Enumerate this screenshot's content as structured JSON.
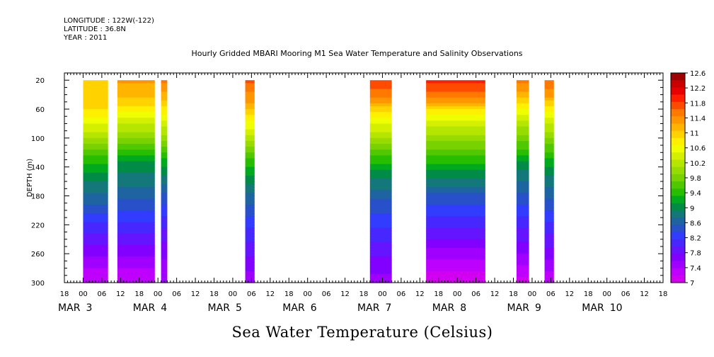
{
  "header": {
    "longitude": "LONGITUDE : 122W(-122)",
    "latitude": "LATITUDE : 36.8N",
    "year": "YEAR : 2011"
  },
  "chart_data": {
    "type": "heatmap",
    "title": "Hourly Gridded MBARI Mooring M1 Sea Water Temperature and Salinity Observations",
    "bottom_title": "Sea Water Temperature (Celsius)",
    "ylabel": "DEPTH (m)",
    "ylim": [
      300,
      10
    ],
    "y_ticks": [
      20,
      60,
      100,
      140,
      180,
      220,
      260,
      300
    ],
    "y_tick_labels": [
      "20",
      "60",
      "100",
      "140",
      "180",
      "220",
      "260",
      "300"
    ],
    "x_range_hours": "2011-03-02 18:00 to 2011-03-10 18:00",
    "x_hour_labels": [
      "18",
      "00",
      "06",
      "12",
      "18",
      "00",
      "06",
      "12",
      "18",
      "00",
      "06",
      "12",
      "18",
      "00",
      "06",
      "12",
      "18",
      "00",
      "06",
      "12",
      "18",
      "00",
      "06",
      "12",
      "18",
      "00",
      "06",
      "12",
      "18",
      "00",
      "06",
      "12",
      "18"
    ],
    "x_date_labels": [
      {
        "month": "MAR",
        "day": "3",
        "anchor_hour": "2011-03-03 00:00"
      },
      {
        "month": "MAR",
        "day": "4",
        "anchor_hour": "2011-03-04 00:00"
      },
      {
        "month": "MAR",
        "day": "5",
        "anchor_hour": "2011-03-05 00:00"
      },
      {
        "month": "MAR",
        "day": "6",
        "anchor_hour": "2011-03-06 00:00"
      },
      {
        "month": "MAR",
        "day": "7",
        "anchor_hour": "2011-03-07 00:00"
      },
      {
        "month": "MAR",
        "day": "8",
        "anchor_hour": "2011-03-08 00:00"
      },
      {
        "month": "MAR",
        "day": "9",
        "anchor_hour": "2011-03-09 00:00"
      },
      {
        "month": "MAR",
        "day": "10",
        "anchor_hour": "2011-03-10 00:00"
      }
    ],
    "colorbar": {
      "min": 7.0,
      "max": 12.6,
      "step": 0.2,
      "labels": [
        "12.6",
        "12.2",
        "11.8",
        "11.4",
        "11",
        "10.6",
        "10.2",
        "9.8",
        "9.4",
        "9",
        "8.6",
        "8.2",
        "7.8",
        "7.4",
        "7"
      ],
      "colors": [
        "#9e0000",
        "#c80000",
        "#e60000",
        "#ff1e00",
        "#ff4b00",
        "#ff7800",
        "#ff9600",
        "#ffb400",
        "#ffd200",
        "#fff000",
        "#f0ff00",
        "#d2f000",
        "#b4e600",
        "#96dc00",
        "#78d200",
        "#50c800",
        "#28be00",
        "#00aa1e",
        "#008c46",
        "#14787a",
        "#1e64a0",
        "#2850c8",
        "#323cff",
        "#4628ff",
        "#6414ff",
        "#8200ff",
        "#a000ff",
        "#be00ff",
        "#d200f0"
      ]
    },
    "data_segments": [
      {
        "start": "2011-03-03 00:00",
        "end": "2011-03-03 08:00",
        "profile": [
          [
            20,
            11.0
          ],
          [
            40,
            11.0
          ],
          [
            60,
            10.9
          ],
          [
            80,
            10.5
          ],
          [
            100,
            10.1
          ],
          [
            120,
            9.6
          ],
          [
            140,
            9.2
          ],
          [
            180,
            8.7
          ],
          [
            220,
            8.1
          ],
          [
            260,
            7.6
          ],
          [
            300,
            7.2
          ]
        ]
      },
      {
        "start": "2011-03-03 11:00",
        "end": "2011-03-03 23:00",
        "profile": [
          [
            20,
            11.3
          ],
          [
            40,
            11.1
          ],
          [
            60,
            10.8
          ],
          [
            80,
            10.3
          ],
          [
            100,
            9.9
          ],
          [
            120,
            9.4
          ],
          [
            140,
            9.0
          ],
          [
            180,
            8.6
          ],
          [
            220,
            8.1
          ],
          [
            260,
            7.6
          ],
          [
            300,
            7.2
          ]
        ]
      },
      {
        "start": "2011-03-04 01:00",
        "end": "2011-03-04 03:00",
        "profile": [
          [
            20,
            11.5
          ],
          [
            40,
            11.2
          ],
          [
            60,
            10.8
          ],
          [
            80,
            10.4
          ],
          [
            100,
            10.0
          ],
          [
            120,
            9.5
          ],
          [
            140,
            9.1
          ],
          [
            180,
            8.5
          ],
          [
            220,
            8.0
          ],
          [
            260,
            7.6
          ],
          [
            300,
            7.5
          ]
        ]
      },
      {
        "start": "2011-03-05 04:00",
        "end": "2011-03-05 07:00",
        "profile": [
          [
            20,
            11.7
          ],
          [
            40,
            11.4
          ],
          [
            60,
            11.1
          ],
          [
            80,
            10.6
          ],
          [
            100,
            10.2
          ],
          [
            120,
            9.7
          ],
          [
            140,
            9.3
          ],
          [
            180,
            8.7
          ],
          [
            220,
            8.2
          ],
          [
            260,
            7.8
          ],
          [
            300,
            7.4
          ]
        ]
      },
      {
        "start": "2011-03-06 20:00",
        "end": "2011-03-07 03:00",
        "profile": [
          [
            20,
            11.8
          ],
          [
            40,
            11.5
          ],
          [
            60,
            11.0
          ],
          [
            80,
            10.5
          ],
          [
            100,
            10.1
          ],
          [
            120,
            9.6
          ],
          [
            140,
            9.2
          ],
          [
            180,
            8.6
          ],
          [
            220,
            8.2
          ],
          [
            260,
            7.8
          ],
          [
            300,
            7.5
          ]
        ]
      },
      {
        "start": "2011-03-07 14:00",
        "end": "2011-03-08 09:00",
        "profile": [
          [
            20,
            11.9
          ],
          [
            40,
            11.6
          ],
          [
            60,
            10.9
          ],
          [
            80,
            10.4
          ],
          [
            100,
            10.0
          ],
          [
            120,
            9.6
          ],
          [
            140,
            9.2
          ],
          [
            180,
            8.5
          ],
          [
            220,
            8.0
          ],
          [
            260,
            7.5
          ],
          [
            300,
            7.0
          ]
        ]
      },
      {
        "start": "2011-03-08 19:00",
        "end": "2011-03-08 23:00",
        "profile": [
          [
            20,
            11.5
          ],
          [
            40,
            11.2
          ],
          [
            60,
            10.7
          ],
          [
            80,
            10.2
          ],
          [
            100,
            9.8
          ],
          [
            120,
            9.4
          ],
          [
            140,
            9.0
          ],
          [
            180,
            8.5
          ],
          [
            220,
            8.0
          ],
          [
            260,
            7.6
          ],
          [
            300,
            7.1
          ]
        ]
      },
      {
        "start": "2011-03-09 04:00",
        "end": "2011-03-09 07:00",
        "profile": [
          [
            20,
            11.6
          ],
          [
            40,
            11.3
          ],
          [
            60,
            10.8
          ],
          [
            80,
            10.3
          ],
          [
            100,
            9.9
          ],
          [
            120,
            9.5
          ],
          [
            140,
            9.1
          ],
          [
            180,
            8.6
          ],
          [
            220,
            8.1
          ],
          [
            260,
            7.7
          ],
          [
            300,
            7.2
          ]
        ]
      }
    ],
    "legend": "colorbar-right",
    "grid": false
  }
}
